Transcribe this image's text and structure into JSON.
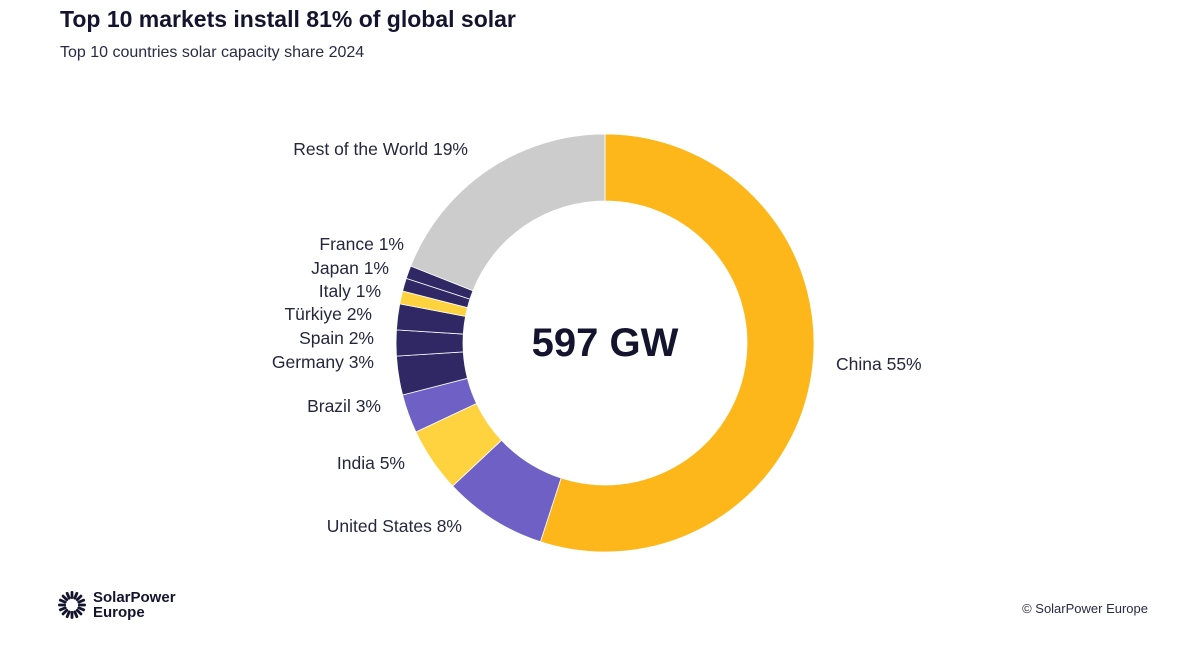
{
  "header": {
    "title": "Top 10 markets install 81% of global solar",
    "subtitle": "Top 10 countries solar capacity share 2024"
  },
  "chart_data": {
    "type": "pie",
    "center_label": "597 GW",
    "slices": [
      {
        "label": "China 55%",
        "value": 55,
        "color": "#FDB71A"
      },
      {
        "label": "United States 8%",
        "value": 8,
        "color": "#6E60C5"
      },
      {
        "label": "India 5%",
        "value": 5,
        "color": "#FFD23F"
      },
      {
        "label": "Brazil 3%",
        "value": 3,
        "color": "#6E60C5"
      },
      {
        "label": "Germany 3%",
        "value": 3,
        "color": "#2F2865"
      },
      {
        "label": "Spain 2%",
        "value": 2,
        "color": "#2F2865"
      },
      {
        "label": "Türkiye 2%",
        "value": 2,
        "color": "#2F2865"
      },
      {
        "label": "Italy 1%",
        "value": 1,
        "color": "#FFD23F"
      },
      {
        "label": "Japan 1%",
        "value": 1,
        "color": "#2F2865"
      },
      {
        "label": "France 1%",
        "value": 1,
        "color": "#2F2865"
      },
      {
        "label": "Rest of the World 19%",
        "value": 19,
        "color": "#CCCCCC"
      }
    ]
  },
  "footer": {
    "logo_text": "SolarPower Europe",
    "copyright": "© SolarPower Europe"
  }
}
